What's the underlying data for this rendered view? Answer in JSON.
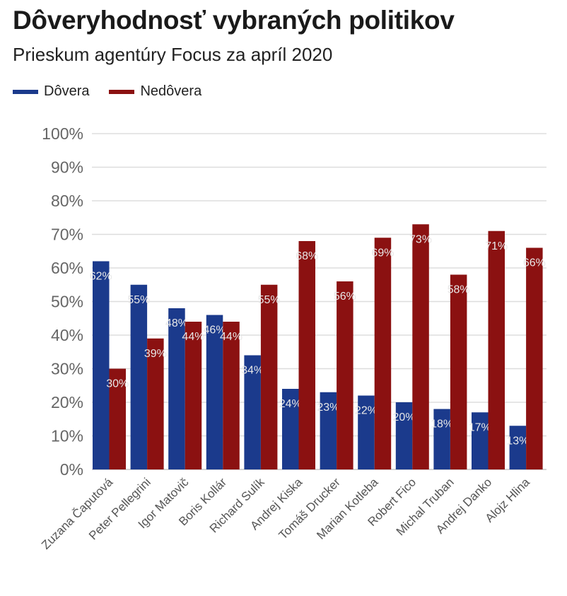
{
  "header": {
    "title": "Dôveryhodnosť vybraných politikov",
    "subtitle": "Prieskum agentúry Focus za apríl 2020"
  },
  "colors": {
    "trust": "#1b3a8c",
    "distrust": "#8b1111",
    "grid": "#dddddd"
  },
  "chart_data": {
    "type": "bar",
    "title": "Dôveryhodnosť vybraných politikov",
    "subtitle": "Prieskum agentúry Focus za apríl 2020",
    "categories": [
      "Zuzana Čaputová",
      "Peter Pellegrini",
      "Igor Matovič",
      "Boris Kollár",
      "Richard Sulík",
      "Andrej Kiska",
      "Tomáš Drucker",
      "Marian Kotleba",
      "Robert Fico",
      "Michal Truban",
      "Andrej Danko",
      "Alojz Hlina"
    ],
    "series": [
      {
        "name": "Dôvera",
        "values": [
          62,
          55,
          48,
          46,
          34,
          24,
          23,
          22,
          20,
          18,
          17,
          13
        ]
      },
      {
        "name": "Nedôvera",
        "values": [
          30,
          39,
          44,
          44,
          55,
          68,
          56,
          69,
          73,
          58,
          71,
          66
        ]
      }
    ],
    "data_labels": [
      [
        "62%",
        "55%",
        "48%",
        "46%",
        "34%",
        "24%",
        "23%",
        "22%",
        "20%",
        "18%",
        "17%",
        "13%"
      ],
      [
        "30%",
        "39%",
        "44%",
        "44%",
        "55%",
        "68%",
        "56%",
        "69%",
        "73%",
        "58%",
        "71%",
        "66%"
      ]
    ],
    "ylim": [
      0,
      100
    ],
    "yticks": [
      "0%",
      "10%",
      "20%",
      "30%",
      "40%",
      "50%",
      "60%",
      "70%",
      "80%",
      "90%",
      "100%"
    ],
    "grid": true,
    "legend_position": "top-left"
  }
}
